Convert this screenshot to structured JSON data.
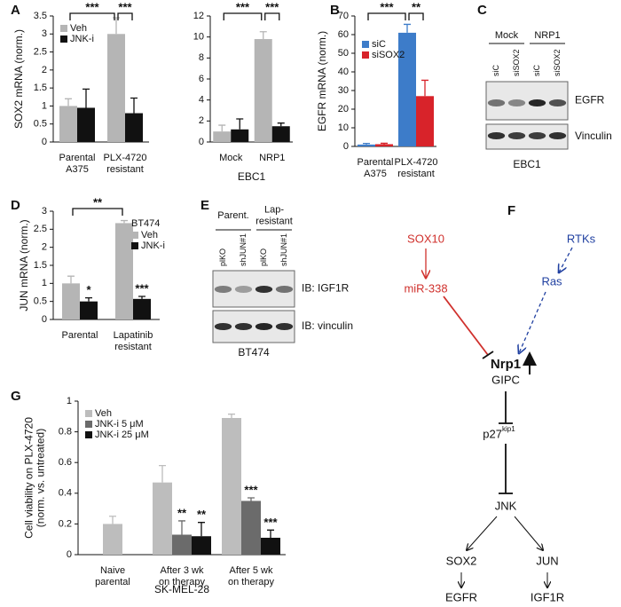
{
  "chart_data": [
    {
      "panel": "A",
      "type": "bar",
      "ylabel": "SOX2 mRNA (norm.)",
      "categories": [
        "Parental\nA375",
        "PLX-4720\nresistant"
      ],
      "series": [
        {
          "name": "Veh",
          "color": "#b5b5b5",
          "values": [
            1.0,
            3.0
          ],
          "errors": [
            0.2,
            0.45
          ]
        },
        {
          "name": "JNK-i",
          "color": "#111111",
          "values": [
            0.95,
            0.8
          ],
          "errors": [
            0.52,
            0.42
          ]
        }
      ],
      "ylim": [
        0,
        3.5
      ],
      "yticks": [
        0,
        0.5,
        1,
        1.5,
        2,
        2.5,
        3,
        3.5
      ],
      "legend": "top-left",
      "brackets": [
        {
          "label": "***",
          "between": [
            [
              0,
              0
            ],
            [
              0,
              1
            ]
          ]
        },
        {
          "label": "***",
          "between": [
            [
              0,
              1
            ],
            [
              1,
              1
            ]
          ]
        }
      ]
    },
    {
      "type": "bar",
      "categories": [
        "Mock",
        "NRP1"
      ],
      "xlabel": "EBC1",
      "series": [
        {
          "name": "Veh",
          "color": "#b5b5b5",
          "values": [
            1.0,
            9.8
          ],
          "errors": [
            0.6,
            0.7
          ]
        },
        {
          "name": "JNK-i",
          "color": "#111111",
          "values": [
            1.2,
            1.5
          ],
          "errors": [
            1.0,
            0.3
          ]
        }
      ],
      "ylim": [
        0,
        12
      ],
      "yticks": [
        0,
        2,
        4,
        6,
        8,
        10,
        12
      ],
      "brackets": [
        {
          "label": "***",
          "between": [
            [
              0,
              0
            ],
            [
              0,
              1
            ]
          ]
        },
        {
          "label": "***",
          "between": [
            [
              0,
              1
            ],
            [
              1,
              1
            ]
          ]
        }
      ]
    },
    {
      "panel": "B",
      "type": "bar",
      "ylabel": "EGFR mRNA (norm.)",
      "categories": [
        "Parental\nA375",
        "PLX-4720\nresistant"
      ],
      "series": [
        {
          "name": "siC",
          "color": "#3d7cc9",
          "values": [
            1,
            61
          ],
          "errors": [
            0.6,
            4.5
          ]
        },
        {
          "name": "siSOX2",
          "color": "#d8232a",
          "values": [
            1.2,
            27
          ],
          "errors": [
            0.5,
            8.5
          ]
        }
      ],
      "ylim": [
        0,
        70
      ],
      "yticks": [
        0,
        10,
        20,
        30,
        40,
        50,
        60,
        70
      ],
      "legend": "top-left",
      "brackets": [
        {
          "label": "***",
          "between": [
            [
              0,
              0
            ],
            [
              0,
              1
            ]
          ]
        },
        {
          "label": "**",
          "between": [
            [
              0,
              1
            ],
            [
              1,
              1
            ]
          ]
        }
      ]
    },
    {
      "panel": "D",
      "type": "bar",
      "ylabel": "JUN mRNA (norm.)",
      "categories": [
        "Parental",
        "Lapatinib\nresistant"
      ],
      "legend_title": "BT474",
      "legend": "top-right",
      "series": [
        {
          "name": "Veh",
          "color": "#b5b5b5",
          "values": [
            1.0,
            2.67
          ],
          "errors": [
            0.2,
            0.07
          ]
        },
        {
          "name": "JNK-i",
          "color": "#111111",
          "values": [
            0.5,
            0.57
          ],
          "errors": [
            0.1,
            0.07
          ],
          "stars": [
            "*",
            "***"
          ]
        }
      ],
      "ylim": [
        0,
        3
      ],
      "yticks": [
        0,
        0.5,
        1,
        1.5,
        2,
        2.5,
        3
      ],
      "brackets": [
        {
          "label": "**",
          "between": [
            [
              0,
              0
            ],
            [
              0,
              1
            ]
          ]
        }
      ]
    },
    {
      "panel": "G",
      "type": "bar",
      "ylabel": "Cell viability on PLX-4720\n(norm. vs. untreated)",
      "categories": [
        "Naive\nparental",
        "After 3 wk\non therapy",
        "After 5 wk\non therapy"
      ],
      "xlabel": "SK-MEL-28",
      "series": [
        {
          "name": "Veh",
          "color": "#bdbdbd",
          "values": [
            0.2,
            0.47,
            0.89
          ],
          "errors": [
            0.05,
            0.11,
            0.025
          ]
        },
        {
          "name": "JNK-i 5 μM",
          "color": "#6b6b6b",
          "values": [
            null,
            0.13,
            0.35
          ],
          "errors": [
            null,
            0.09,
            0.02
          ],
          "stars": [
            null,
            "**",
            "***"
          ]
        },
        {
          "name": "JNK-i 25 μM",
          "color": "#111111",
          "values": [
            null,
            0.12,
            0.11
          ],
          "errors": [
            null,
            0.09,
            0.05
          ],
          "stars": [
            null,
            "**",
            "***"
          ]
        }
      ],
      "ylim": [
        0,
        1
      ],
      "yticks": [
        0,
        0.2,
        0.4,
        0.6,
        0.8,
        1
      ],
      "legend": "top-left"
    }
  ],
  "blots": [
    {
      "panel": "C",
      "groups": [
        "Mock",
        "NRP1"
      ],
      "lanes": [
        "siC",
        "siSOX2",
        "siC",
        "siSOX2"
      ],
      "bands": [
        "EGFR",
        "Vinculin"
      ],
      "footer": "EBC1"
    },
    {
      "panel": "E",
      "groups": [
        "Parent.",
        "Lap-\nresistant"
      ],
      "lanes": [
        "plKO",
        "shJUN#1",
        "plKO",
        "shJUN#1"
      ],
      "bands": [
        "IB: IGF1R",
        "IB: vinculin"
      ],
      "footer": "BT474"
    }
  ],
  "pathway": {
    "panel": "F",
    "nodes": [
      {
        "label": "SOX10"
      },
      {
        "label": "miR-338"
      },
      {
        "label": "RTKs"
      },
      {
        "label": "Ras"
      },
      {
        "label": "Nrp1"
      },
      {
        "label": "GIPC"
      },
      {
        "label": "p27",
        "superscript": "kip1"
      },
      {
        "label": "JNK"
      },
      {
        "label": "SOX2"
      },
      {
        "label": "JUN"
      },
      {
        "label": "EGFR"
      },
      {
        "label": "IGF1R"
      }
    ]
  }
}
